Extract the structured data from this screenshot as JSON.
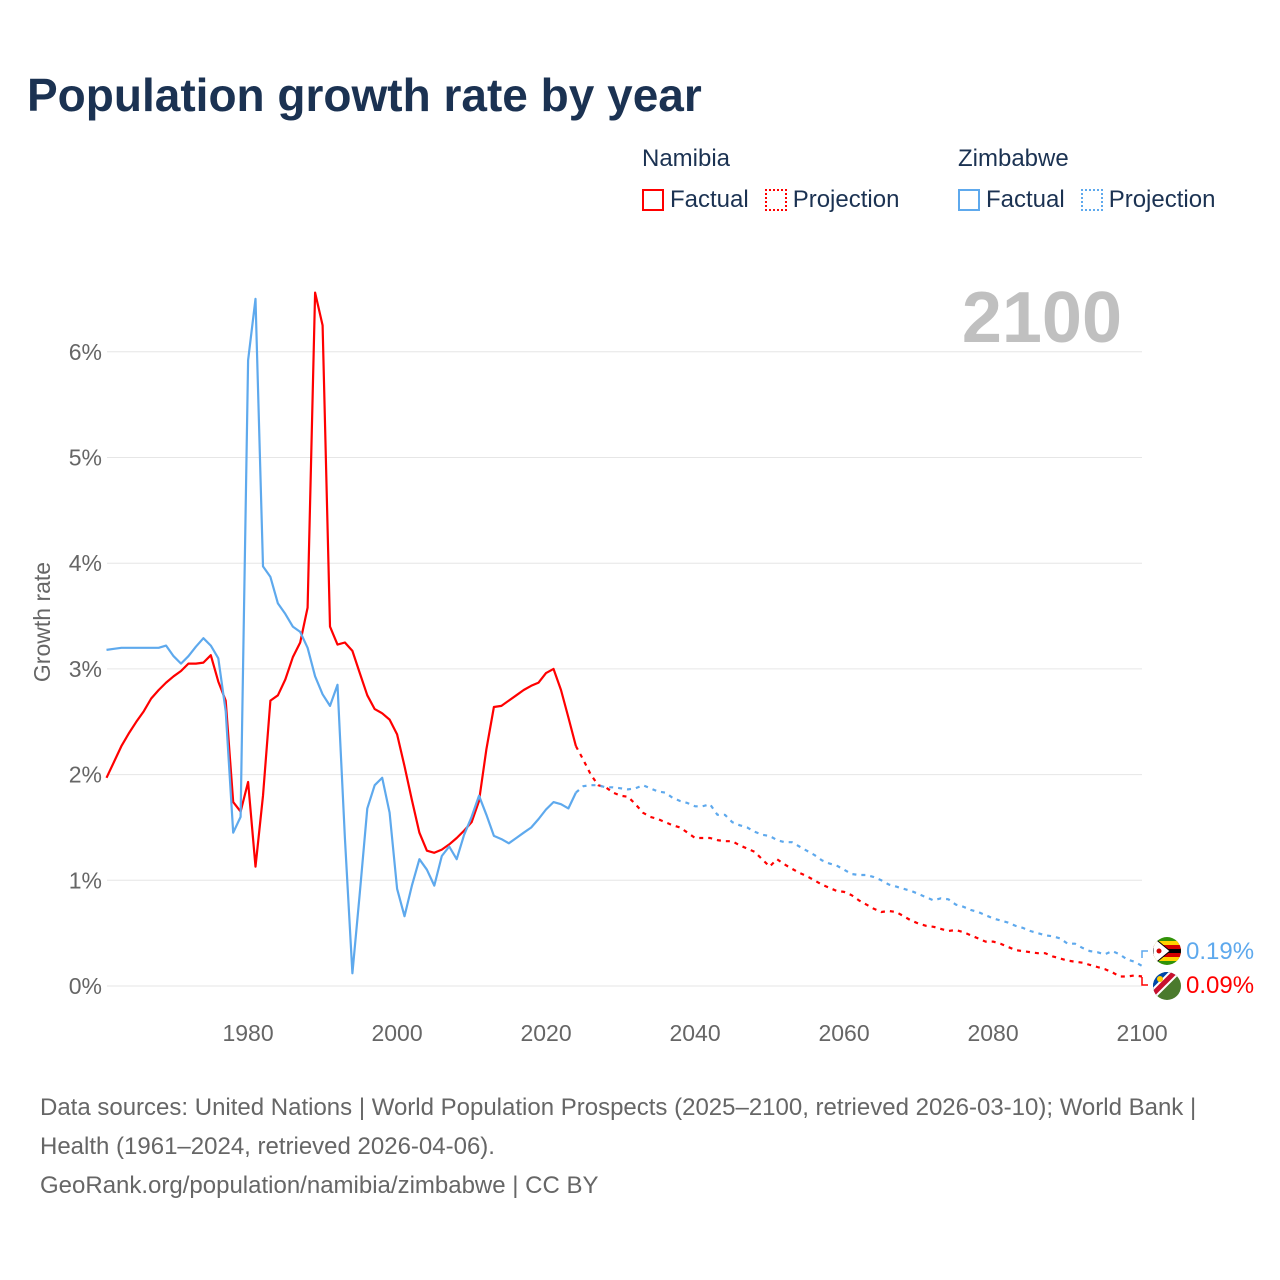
{
  "title": "Population growth rate by year",
  "legend": {
    "groups": [
      {
        "name": "Namibia",
        "factual": "Factual",
        "projection": "Projection",
        "color": "#ff0000"
      },
      {
        "name": "Zimbabwe",
        "factual": "Factual",
        "projection": "Projection",
        "color": "#5ea9ed"
      }
    ]
  },
  "year_display": "2100",
  "end_labels": {
    "zimbabwe": "0.19%",
    "namibia": "0.09%"
  },
  "sources": {
    "line1": "Data sources: United Nations | World Population Prospects (2025–2100, retrieved 2026-03-10); World Bank | Health (1961–2024, retrieved 2026-04-06).",
    "line2": "GeoRank.org/population/namibia/zimbabwe | CC BY"
  },
  "chart_data": {
    "type": "line",
    "title": "Population growth rate by year",
    "xlabel": "",
    "ylabel": "Growth rate",
    "xlim": [
      1961,
      2100
    ],
    "ylim": [
      0,
      6.6
    ],
    "x_ticks": [
      1980,
      2000,
      2020,
      2040,
      2060,
      2080,
      2100
    ],
    "y_ticks": [
      0,
      1,
      2,
      3,
      4,
      5,
      6
    ],
    "y_tick_labels": [
      "0%",
      "1%",
      "2%",
      "3%",
      "4%",
      "5%",
      "6%"
    ],
    "grid": true,
    "legend_position": "top-right",
    "series": [
      {
        "name": "Namibia",
        "color": "#ff0000",
        "factual": {
          "start": 1961,
          "values": [
            1.97,
            2.12,
            2.27,
            2.39,
            2.5,
            2.6,
            2.72,
            2.8,
            2.87,
            2.93,
            2.98,
            3.05,
            3.05,
            3.06,
            3.13,
            2.88,
            2.7,
            1.74,
            1.65,
            1.93,
            1.13,
            1.8,
            2.7,
            2.75,
            2.9,
            3.11,
            3.25,
            3.58,
            6.56,
            6.25,
            3.4,
            3.23,
            3.25,
            3.17,
            2.96,
            2.75,
            2.62,
            2.58,
            2.52,
            2.38,
            2.08,
            1.76,
            1.45,
            1.28,
            1.26,
            1.29,
            1.34,
            1.4,
            1.47,
            1.55,
            1.75,
            2.24,
            2.64,
            2.65,
            2.7,
            2.75,
            2.8,
            2.84,
            2.87,
            2.96,
            3.0,
            2.8,
            2.54,
            2.27
          ]
        },
        "projection": {
          "start": 2024,
          "values": [
            2.27,
            2.14,
            2.0,
            1.9,
            1.88,
            1.83,
            1.8,
            1.79,
            1.72,
            1.64,
            1.6,
            1.58,
            1.55,
            1.52,
            1.5,
            1.45,
            1.4,
            1.4,
            1.4,
            1.38,
            1.37,
            1.37,
            1.33,
            1.3,
            1.27,
            1.2,
            1.13,
            1.2,
            1.15,
            1.11,
            1.07,
            1.04,
            1.0,
            0.96,
            0.93,
            0.9,
            0.89,
            0.86,
            0.81,
            0.77,
            0.73,
            0.7,
            0.71,
            0.7,
            0.66,
            0.62,
            0.59,
            0.57,
            0.56,
            0.54,
            0.52,
            0.53,
            0.51,
            0.48,
            0.45,
            0.42,
            0.42,
            0.4,
            0.37,
            0.34,
            0.33,
            0.32,
            0.31,
            0.31,
            0.28,
            0.26,
            0.24,
            0.23,
            0.22,
            0.2,
            0.18,
            0.16,
            0.13,
            0.09,
            0.09,
            0.1,
            0.09
          ]
        }
      },
      {
        "name": "Zimbabwe",
        "color": "#5ea9ed",
        "factual": {
          "start": 1961,
          "values": [
            3.18,
            3.19,
            3.2,
            3.2,
            3.2,
            3.2,
            3.2,
            3.2,
            3.22,
            3.12,
            3.05,
            3.12,
            3.21,
            3.29,
            3.22,
            3.1,
            2.6,
            1.45,
            1.6,
            5.92,
            6.5,
            3.97,
            3.87,
            3.62,
            3.52,
            3.4,
            3.35,
            3.2,
            2.93,
            2.76,
            2.65,
            2.85,
            1.4,
            0.12,
            0.88,
            1.68,
            1.9,
            1.97,
            1.64,
            0.92,
            0.66,
            0.95,
            1.2,
            1.1,
            0.95,
            1.23,
            1.32,
            1.2,
            1.43,
            1.6,
            1.8,
            1.62,
            1.42,
            1.39,
            1.35,
            1.4,
            1.45,
            1.5,
            1.58,
            1.67,
            1.74,
            1.72,
            1.68,
            1.83
          ]
        },
        "projection": {
          "start": 2024,
          "values": [
            1.83,
            1.89,
            1.9,
            1.9,
            1.88,
            1.88,
            1.87,
            1.86,
            1.87,
            1.9,
            1.87,
            1.84,
            1.83,
            1.78,
            1.75,
            1.73,
            1.7,
            1.7,
            1.72,
            1.62,
            1.62,
            1.55,
            1.52,
            1.5,
            1.46,
            1.43,
            1.42,
            1.38,
            1.36,
            1.36,
            1.32,
            1.28,
            1.24,
            1.19,
            1.16,
            1.14,
            1.1,
            1.06,
            1.05,
            1.05,
            1.03,
            1.0,
            0.96,
            0.94,
            0.92,
            0.9,
            0.87,
            0.84,
            0.81,
            0.83,
            0.82,
            0.77,
            0.75,
            0.72,
            0.7,
            0.67,
            0.64,
            0.62,
            0.6,
            0.57,
            0.55,
            0.52,
            0.5,
            0.48,
            0.47,
            0.45,
            0.4,
            0.4,
            0.36,
            0.33,
            0.32,
            0.3,
            0.33,
            0.3,
            0.25,
            0.23,
            0.19
          ]
        }
      }
    ]
  }
}
